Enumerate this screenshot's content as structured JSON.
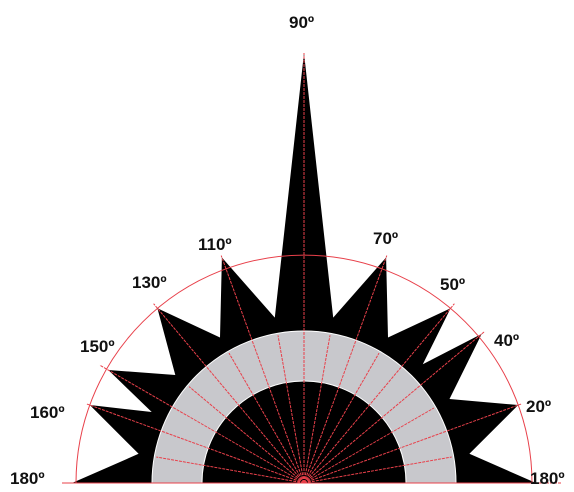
{
  "diagram": {
    "labels": [
      {
        "text": "90º",
        "angle": 90
      },
      {
        "text": "110º",
        "angle": 110
      },
      {
        "text": "70º",
        "angle": 70
      },
      {
        "text": "130º",
        "angle": 130
      },
      {
        "text": "50º",
        "angle": 50
      },
      {
        "text": "150º",
        "angle": 150
      },
      {
        "text": "40º",
        "angle": 40
      },
      {
        "text": "160º",
        "angle": 160
      },
      {
        "text": "20º",
        "angle": 20
      },
      {
        "text": "180º",
        "angle": 180
      },
      {
        "text": "180º",
        "angle": 0
      }
    ],
    "colors": {
      "star": "#000000",
      "band": "#c8c8cc",
      "guide": "#e8404a",
      "label": "#111111"
    }
  }
}
